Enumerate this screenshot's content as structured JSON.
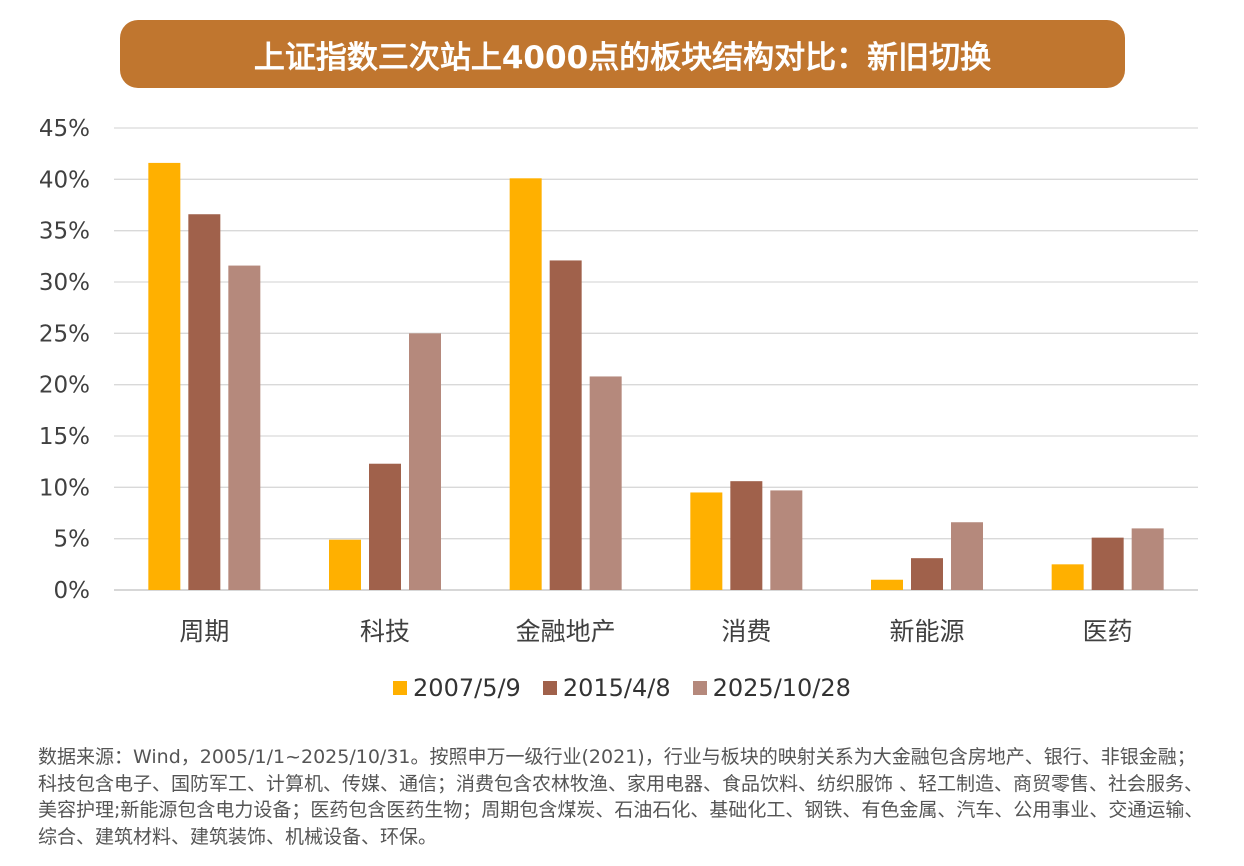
{
  "title": "上证指数三次站上4000点的板块结构对比：新旧切换",
  "chart_data": {
    "type": "bar",
    "title": "上证指数三次站上4000点的板块结构对比：新旧切换",
    "categories": [
      "周期",
      "科技",
      "金融地产",
      "消费",
      "新能源",
      "医药"
    ],
    "series": [
      {
        "name": "2007/5/9",
        "color": "#FFB000",
        "values": [
          41.6,
          4.9,
          40.1,
          9.5,
          1.0,
          2.5
        ]
      },
      {
        "name": "2015/4/8",
        "color": "#A0614B",
        "values": [
          36.6,
          12.3,
          32.1,
          10.6,
          3.1,
          5.1
        ]
      },
      {
        "name": "2025/10/28",
        "color": "#B5897C",
        "values": [
          31.6,
          25.0,
          20.8,
          9.7,
          6.6,
          6.0
        ]
      }
    ],
    "yticks": [
      "0%",
      "5%",
      "10%",
      "15%",
      "20%",
      "25%",
      "30%",
      "35%",
      "40%",
      "45%"
    ],
    "ylim": [
      0,
      45
    ],
    "xlabel": "",
    "ylabel": "",
    "legend": "bottom",
    "grid": true
  },
  "note": "数据来源：Wind，2005/1/1~2025/10/31。按照申万一级行业(2021)，行业与板块的映射关系为大金融包含房地产、银行、非银金融；科技包含电子、国防军工、计算机、传媒、通信；消费包含农林牧渔、家用电器、食品饮料、纺织服饰 、轻工制造、商贸零售、社会服务、美容护理;新能源包含电力设备；医药包含医药生物；周期包含煤炭、石油石化、基础化工、钢铁、有色金属、汽车、公用事业、交通运输、综合、建筑材料、建筑装饰、机械设备、环保。"
}
